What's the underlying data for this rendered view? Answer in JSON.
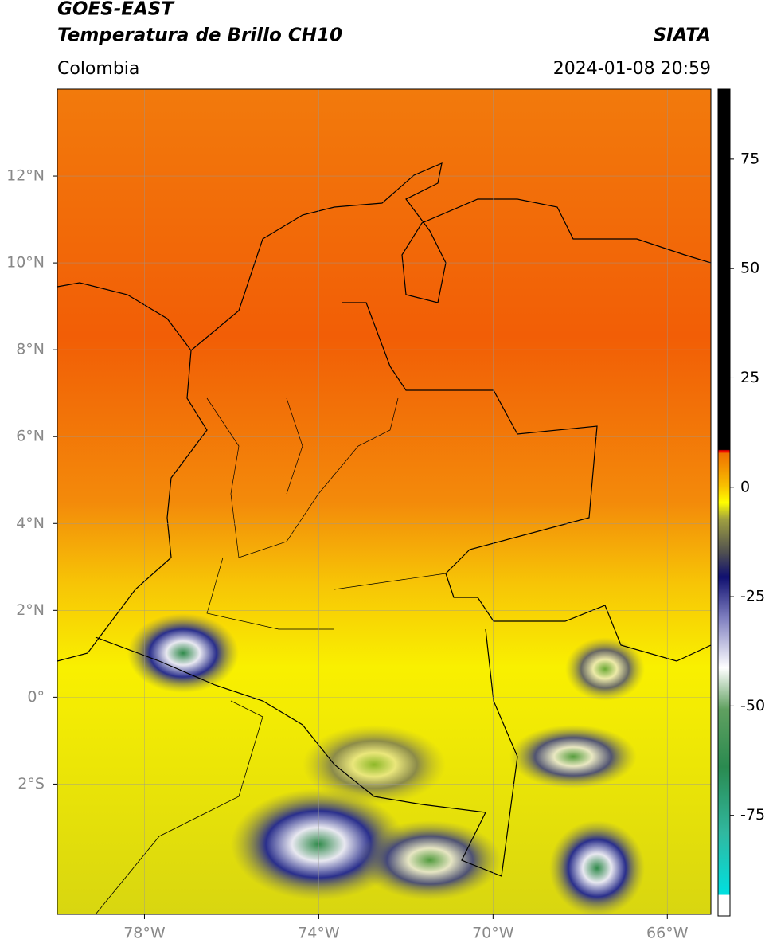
{
  "header": {
    "title": "GOES-EAST",
    "subtitle": "Temperatura de Brillo CH10",
    "region": "Colombia",
    "source": "SIATA",
    "timestamp": "2024-01-08 20:59"
  },
  "map": {
    "xlim": [
      -80,
      -65
    ],
    "ylim": [
      -5,
      14
    ],
    "xticks": [
      {
        "value": -78,
        "label": "78°W"
      },
      {
        "value": -74,
        "label": "74°W"
      },
      {
        "value": -70,
        "label": "70°W"
      },
      {
        "value": -66,
        "label": "66°W"
      }
    ],
    "yticks": [
      {
        "value": 12,
        "label": "12°N"
      },
      {
        "value": 10,
        "label": "10°N"
      },
      {
        "value": 8,
        "label": "8°N"
      },
      {
        "value": 6,
        "label": "6°N"
      },
      {
        "value": 4,
        "label": "4°N"
      },
      {
        "value": 2,
        "label": "2°N"
      },
      {
        "value": 0,
        "label": "0°"
      },
      {
        "value": -2,
        "label": "2°S"
      }
    ],
    "grid": true
  },
  "colorbar": {
    "lim": [
      -98,
      91
    ],
    "ticks": [
      75,
      50,
      25,
      0,
      -25,
      -50,
      -75
    ]
  }
}
